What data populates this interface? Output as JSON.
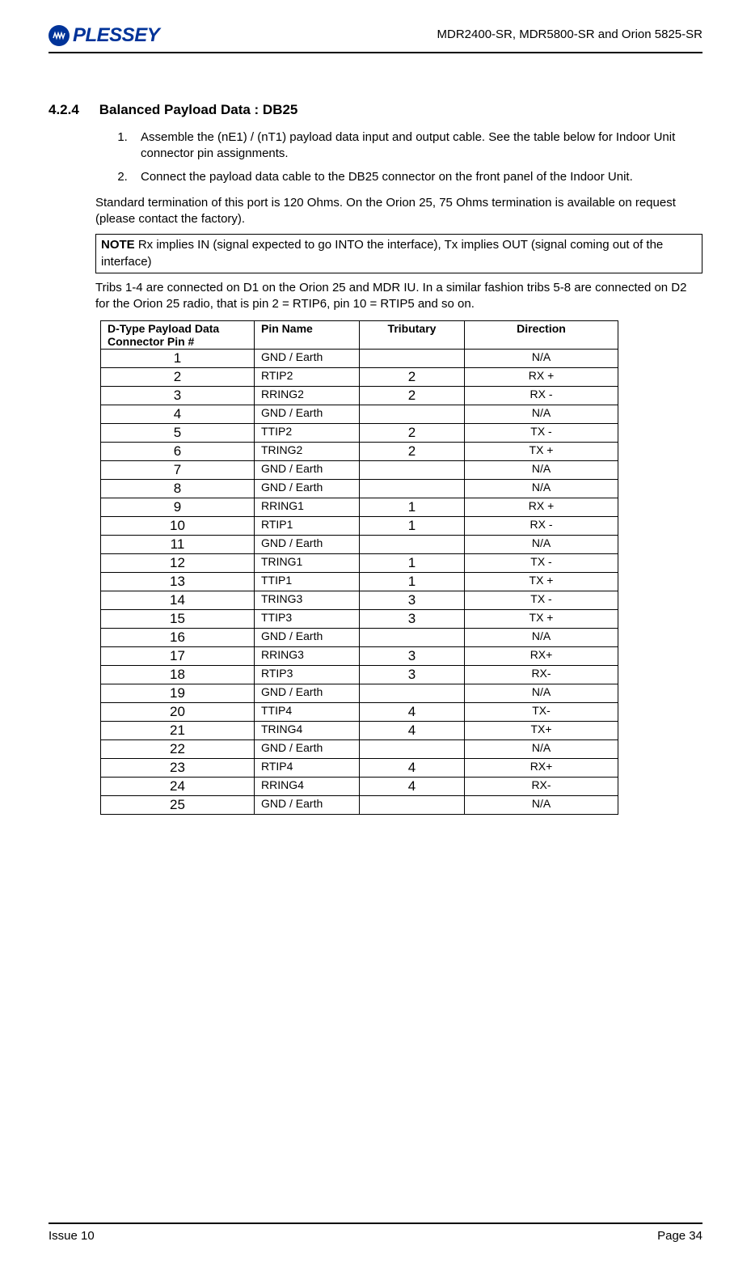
{
  "header": {
    "logo_text": "PLESSEY",
    "doc_title": "MDR2400-SR, MDR5800-SR and Orion 5825-SR"
  },
  "section": {
    "number": "4.2.4",
    "title": "Balanced Payload Data : DB25"
  },
  "steps": [
    "Assemble the (nE1) / (nT1) payload data input and output cable.  See the table below for Indoor Unit connector pin assignments.",
    "Connect the payload data cable to the DB25 connector on the front panel of the Indoor Unit."
  ],
  "para_termination": "Standard termination of this port is 120 Ohms.  On the Orion 25, 75 Ohms termination is available on request (please contact the factory).",
  "note_prefix": "NOTE",
  "note_body": " Rx implies IN (signal expected to go INTO the interface), Tx implies OUT (signal coming out of the interface)",
  "para_tribs": "Tribs 1-4 are connected on D1 on the Orion 25 and MDR IU.  In a similar fashion tribs 5-8 are connected on D2 for the Orion 25 radio, that is pin 2 = RTIP6, pin 10 = RTIP5 and so on.",
  "table": {
    "headers": {
      "pin": "D-Type Payload Data Connector Pin  #",
      "name": "Pin Name",
      "trib": "Tributary",
      "dir": "Direction"
    },
    "rows": [
      {
        "pin": "1",
        "name": "GND / Earth",
        "trib": "",
        "dir": "N/A"
      },
      {
        "pin": "2",
        "name": "RTIP2",
        "trib": "2",
        "dir": "RX +"
      },
      {
        "pin": "3",
        "name": "RRING2",
        "trib": "2",
        "dir": "RX -"
      },
      {
        "pin": "4",
        "name": "GND / Earth",
        "trib": "",
        "dir": "N/A"
      },
      {
        "pin": "5",
        "name": "TTIP2",
        "trib": "2",
        "dir": "TX -"
      },
      {
        "pin": "6",
        "name": "TRING2",
        "trib": "2",
        "dir": "TX +"
      },
      {
        "pin": "7",
        "name": "GND / Earth",
        "trib": "",
        "dir": "N/A"
      },
      {
        "pin": "8",
        "name": "GND / Earth",
        "trib": "",
        "dir": "N/A"
      },
      {
        "pin": "9",
        "name": "RRING1",
        "trib": "1",
        "dir": "RX +"
      },
      {
        "pin": "10",
        "name": "RTIP1",
        "trib": "1",
        "dir": "RX -"
      },
      {
        "pin": "11",
        "name": "GND / Earth",
        "trib": "",
        "dir": "N/A"
      },
      {
        "pin": "12",
        "name": "TRING1",
        "trib": "1",
        "dir": "TX -"
      },
      {
        "pin": "13",
        "name": "TTIP1",
        "trib": "1",
        "dir": "TX +"
      },
      {
        "pin": "14",
        "name": "TRING3",
        "trib": "3",
        "dir": "TX -"
      },
      {
        "pin": "15",
        "name": "TTIP3",
        "trib": "3",
        "dir": "TX +"
      },
      {
        "pin": "16",
        "name": "GND / Earth",
        "trib": "",
        "dir": "N/A"
      },
      {
        "pin": "17",
        "name": "RRING3",
        "trib": "3",
        "dir": "RX+"
      },
      {
        "pin": "18",
        "name": "RTIP3",
        "trib": "3",
        "dir": "RX-"
      },
      {
        "pin": "19",
        "name": "GND / Earth",
        "trib": "",
        "dir": "N/A"
      },
      {
        "pin": "20",
        "name": "TTIP4",
        "trib": "4",
        "dir": "TX-"
      },
      {
        "pin": "21",
        "name": "TRING4",
        "trib": "4",
        "dir": "TX+"
      },
      {
        "pin": "22",
        "name": "GND / Earth",
        "trib": "",
        "dir": "N/A"
      },
      {
        "pin": "23",
        "name": "RTIP4",
        "trib": "4",
        "dir": "RX+"
      },
      {
        "pin": "24",
        "name": "RRING4",
        "trib": "4",
        "dir": "RX-"
      },
      {
        "pin": "25",
        "name": "GND / Earth",
        "trib": "",
        "dir": "N/A"
      }
    ]
  },
  "footer": {
    "left": "Issue 10",
    "right": "Page 34"
  }
}
